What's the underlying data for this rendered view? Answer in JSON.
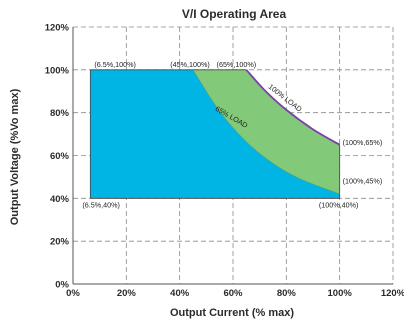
{
  "chart_data": {
    "type": "area",
    "title": "V/I Operating Area",
    "xlabel": "Output Current (% max)",
    "ylabel": "Output Voltage (%Vo max)",
    "xlim": [
      0,
      120
    ],
    "ylim": [
      0,
      120
    ],
    "x_ticks": [
      "0%",
      "20%",
      "40%",
      "60%",
      "80%",
      "100%",
      "120%"
    ],
    "y_ticks": [
      "0%",
      "20%",
      "40%",
      "60%",
      "80%",
      "100%",
      "120%"
    ],
    "grid": true,
    "colors": {
      "operating_area": "#00b4e4",
      "extended_area": "#82c97a",
      "load_100_curve": "#7b3fa8",
      "boundary": "#444444",
      "axis": "#555555"
    },
    "regions": [
      {
        "id": "base",
        "points": [
          [
            6.5,
            40
          ],
          [
            6.5,
            100
          ],
          [
            45,
            100
          ],
          [
            45,
            100
          ],
          [
            100,
            40
          ],
          [
            100,
            40
          ]
        ],
        "curve": "65% LOAD"
      },
      {
        "id": "extended",
        "points": [
          [
            45,
            100
          ],
          [
            65,
            100
          ],
          [
            100,
            65
          ],
          [
            100,
            45
          ]
        ]
      }
    ],
    "curves": [
      {
        "name": "100% LOAD",
        "points": [
          [
            65,
            100
          ],
          [
            72,
            90.3
          ],
          [
            80,
            81.3
          ],
          [
            90,
            72.2
          ],
          [
            100,
            65
          ]
        ]
      },
      {
        "name": "65% LOAD",
        "points": [
          [
            45,
            100
          ],
          [
            55,
            80.6
          ],
          [
            65,
            66.4
          ],
          [
            75,
            56.3
          ],
          [
            85,
            49.2
          ],
          [
            100,
            42
          ]
        ]
      }
    ],
    "point_labels": [
      {
        "text": "(6.5%,100%)",
        "x": 6.5,
        "y": 100
      },
      {
        "text": "(45%,100%)",
        "x": 45,
        "y": 100
      },
      {
        "text": "(65%,100%)",
        "x": 65,
        "y": 100
      },
      {
        "text": "(100%,65%)",
        "x": 100,
        "y": 65
      },
      {
        "text": "(100%,45%)",
        "x": 100,
        "y": 45
      },
      {
        "text": "(6.5%,40%)",
        "x": 6.5,
        "y": 40
      },
      {
        "text": "(100%,40%)",
        "x": 100,
        "y": 40
      }
    ]
  }
}
